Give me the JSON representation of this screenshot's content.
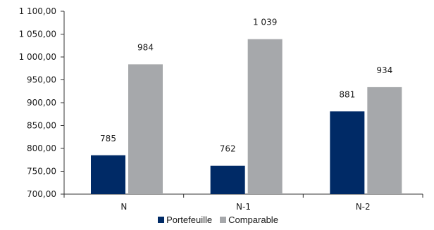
{
  "chart_data": {
    "type": "bar",
    "categories": [
      "N",
      "N-1",
      "N-2"
    ],
    "series": [
      {
        "name": "Portefeuille",
        "values": [
          785,
          762,
          881
        ],
        "labels": [
          "785",
          "762",
          "881"
        ],
        "color": "#002a66"
      },
      {
        "name": "Comparable",
        "values": [
          984,
          1039,
          934
        ],
        "labels": [
          "984",
          "1 039",
          "934"
        ],
        "color": "#a6a8ab"
      }
    ],
    "ylim": [
      700,
      1100
    ],
    "yticks": [
      700,
      750,
      800,
      850,
      900,
      950,
      1000,
      1050,
      1100
    ],
    "ytick_labels": [
      "700,00",
      "750,00",
      "800,00",
      "850,00",
      "900,00",
      "950,00",
      "1 000,00",
      "1 050,00",
      "1 100,00"
    ],
    "legend_position": "bottom",
    "grid": false
  }
}
